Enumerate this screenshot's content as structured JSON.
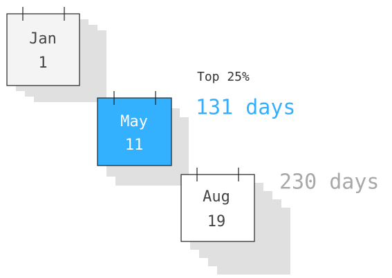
{
  "calendars": [
    {
      "month": "Jan",
      "day": "1"
    },
    {
      "month": "May",
      "day": "11"
    },
    {
      "month": "Aug",
      "day": "19"
    }
  ],
  "annotations": {
    "top_label": "Top 25%",
    "top_days": "131 days",
    "total_days": "230 days"
  }
}
